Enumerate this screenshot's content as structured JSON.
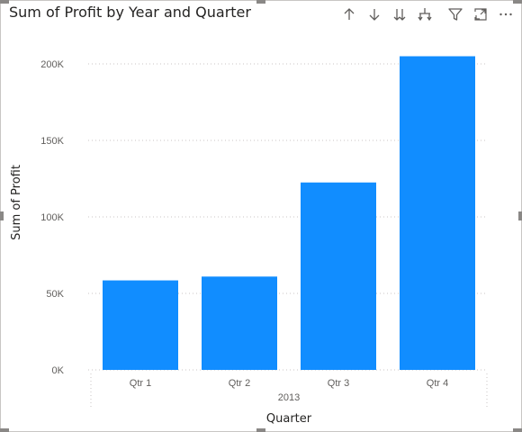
{
  "visual": {
    "title": "Sum of Profit by Year and Quarter",
    "accent": "#118DFF"
  },
  "toolbar": {
    "icons": [
      "drill-up-icon",
      "drill-down-icon",
      "expand-next-level-icon",
      "expand-all-icon",
      "filter-icon",
      "focus-mode-icon",
      "more-options-icon"
    ]
  },
  "chart_data": {
    "type": "bar",
    "title": "Sum of Profit by Year and Quarter",
    "categories": [
      "Qtr 1",
      "Qtr 2",
      "Qtr 3",
      "Qtr 4"
    ],
    "group_label": "2013",
    "values": [
      58500,
      61000,
      122500,
      205000
    ],
    "xlabel": "Quarter",
    "ylabel": "Sum of Profit",
    "ylim": [
      0,
      220000
    ],
    "yticks": [
      0,
      50000,
      100000,
      150000,
      200000
    ],
    "ytick_labels": [
      "0K",
      "50K",
      "100K",
      "150K",
      "200K"
    ],
    "grid": true,
    "bar_color": "#118DFF"
  }
}
